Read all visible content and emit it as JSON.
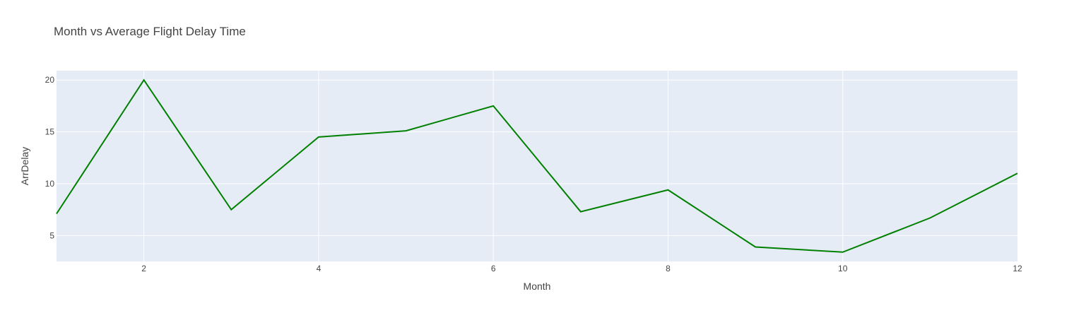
{
  "chart_data": {
    "type": "line",
    "title": "Month vs Average Flight Delay Time",
    "xlabel": "Month",
    "ylabel": "ArrDelay",
    "xlim": [
      1,
      12
    ],
    "ylim": [
      2.5,
      20.9
    ],
    "x_ticks": [
      2,
      4,
      6,
      8,
      10,
      12
    ],
    "y_ticks": [
      5,
      10,
      15,
      20
    ],
    "grid": true,
    "legend": false,
    "colors": {
      "plot_bg": "#e5ecf6",
      "grid": "#ffffff",
      "line": "#008000"
    },
    "series": [
      {
        "x": [
          1,
          2,
          3,
          4,
          5,
          6,
          7,
          8,
          9,
          10,
          11,
          12
        ],
        "y": [
          7.1,
          20.0,
          7.5,
          14.5,
          15.1,
          17.5,
          7.3,
          9.4,
          3.9,
          3.4,
          6.7,
          11.0
        ]
      }
    ]
  }
}
